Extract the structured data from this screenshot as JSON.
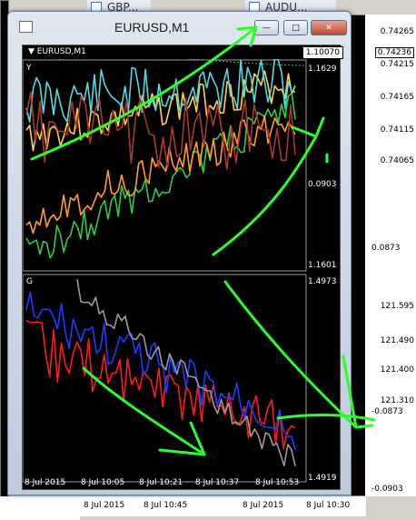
{
  "background_windows": {
    "gbp_title": "GBP...",
    "aud_title": "AUDU...",
    "right_prices_top": [
      "0.74265",
      "0.74236",
      "0.74215",
      "0.74165",
      "0.74115",
      "0.74065"
    ],
    "right_prices_mid": [
      "121.595",
      "121.490",
      "121.400",
      "121.310"
    ],
    "bottom_times_left": [
      "8 Jul 2015",
      "8 Jul 10:45"
    ],
    "bottom_times_right": [
      "8 Jul 2015",
      "8 Jul 10:30"
    ]
  },
  "window": {
    "title": "EURUSD,M1",
    "minimize": "—",
    "maximize": "□",
    "close": "✕"
  },
  "chart": {
    "symbol_label": "▼ EURUSD,M1",
    "symbol_price": "1.10070",
    "panel_y_label": "Y",
    "panel_g_label": "G",
    "panel_y_right_top": "1.1629",
    "panel_y_right_mid": "0.0903",
    "panel_y_right_bottom": "1.1601",
    "panel_y_right_low": "0.0873",
    "panel_g_right_top": "1.4973",
    "panel_g_right_mid": "-0.0873",
    "panel_g_right_bottom": "1.4919",
    "panel_g_right_low": "-0.0903",
    "x_labels": [
      "8 Jul 2015",
      "8 Jul 10:05",
      "8 Jul 10:21",
      "8 Jul 10:37",
      "8 Jul 10:53"
    ]
  },
  "chart_data": {
    "type": "line",
    "title": "EURUSD,M1",
    "panels": [
      {
        "name": "Y",
        "ylim": [
          1.1601,
          1.1629
        ],
        "series": [
          {
            "color": "#ffd24a"
          },
          {
            "color": "#55d8e0"
          },
          {
            "color": "#2ecc40"
          },
          {
            "color": "#ff9c2a"
          },
          {
            "color": "#a83a2a"
          }
        ]
      },
      {
        "name": "G",
        "ylim": [
          1.4919,
          1.4973
        ],
        "series": [
          {
            "color": "#ff1a1a"
          },
          {
            "color": "#1a3cff"
          },
          {
            "color": "#9a9a9a"
          }
        ]
      }
    ],
    "x_labels": [
      "8 Jul 2015",
      "8 Jul 10:05",
      "8 Jul 10:21",
      "8 Jul 10:37",
      "8 Jul 10:53"
    ]
  },
  "colors": {
    "annotation": "#2aff2a",
    "chart_bg": "#000000"
  }
}
